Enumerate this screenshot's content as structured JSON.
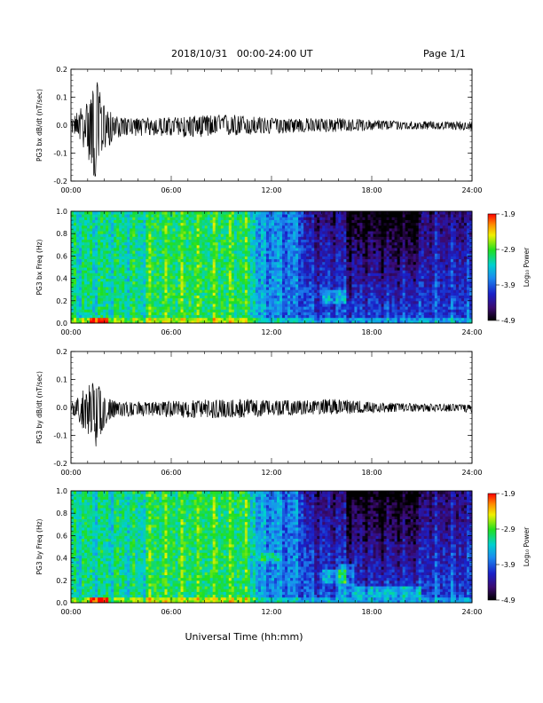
{
  "header": {
    "title": "2018/10/31   00:00-24:00 UT",
    "page": "Page 1/1"
  },
  "xlabel": "Universal Time (hh:mm)",
  "x_ticks": [
    "00:00",
    "06:00",
    "12:00",
    "18:00",
    "24:00"
  ],
  "colorbar": {
    "label": "Log₁₀ Power",
    "ticks": [
      "-1.9",
      "-2.9",
      "-3.9",
      "-4.9"
    ],
    "range": [
      -4.9,
      -1.9
    ]
  },
  "chart_data": [
    {
      "type": "line",
      "ylabel": "PG3 bx dB/dt (nT/sec)",
      "xlim": [
        0,
        24
      ],
      "ylim": [
        -0.2,
        0.2
      ],
      "y_ticks": [
        "0.2",
        "0.1",
        "0.0",
        "-0.1",
        "-0.2"
      ],
      "series": [
        {
          "x": [
            0,
            0.5,
            1.0,
            1.5,
            1.8,
            2.0,
            2.5,
            3,
            5,
            7,
            9,
            10,
            12,
            14,
            16,
            18,
            20,
            22,
            24
          ],
          "y_max": [
            0.01,
            0.05,
            0.07,
            0.13,
            0.09,
            0.06,
            0.03,
            0.02,
            0.02,
            0.025,
            0.03,
            0.03,
            0.02,
            0.02,
            0.02,
            0.015,
            0.012,
            0.01,
            0.01
          ],
          "y_min": [
            -0.02,
            -0.04,
            -0.09,
            -0.17,
            -0.1,
            -0.07,
            -0.05,
            -0.03,
            -0.03,
            -0.035,
            -0.03,
            -0.03,
            -0.025,
            -0.02,
            -0.02,
            -0.015,
            -0.012,
            -0.012,
            -0.015
          ]
        }
      ]
    },
    {
      "type": "heatmap",
      "ylabel": "PG3 bx Freq (Hz)",
      "xlim": [
        0,
        24
      ],
      "ylim": [
        0,
        1
      ],
      "y_ticks": [
        "1.0",
        "0.8",
        "0.6",
        "0.4",
        "0.2",
        "0.0"
      ],
      "colorbar_range": [
        -4.9,
        -1.9
      ],
      "features": [
        {
          "note": "",
          "x": [
            0,
            24
          ],
          "y": [
            0,
            1
          ],
          "value": -3.3
        }
      ]
    },
    {
      "type": "line",
      "ylabel": "PG3 by dB/dt (nT/sec)",
      "xlim": [
        0,
        24
      ],
      "ylim": [
        -0.2,
        0.2
      ],
      "y_ticks": [
        "0.2",
        "0.1",
        "0.0",
        "-0.1",
        "-0.2"
      ],
      "series": [
        {
          "x": [
            0,
            0.5,
            1.0,
            1.5,
            1.8,
            2.0,
            2.5,
            3,
            5,
            7,
            9,
            10,
            12,
            14,
            16,
            18,
            20,
            22,
            24
          ],
          "y_max": [
            0.01,
            0.04,
            0.06,
            0.08,
            0.05,
            0.04,
            0.02,
            0.015,
            0.015,
            0.02,
            0.025,
            0.025,
            0.02,
            0.02,
            0.025,
            0.015,
            0.012,
            0.01,
            0.01
          ],
          "y_min": [
            -0.02,
            -0.05,
            -0.08,
            -0.12,
            -0.08,
            -0.05,
            -0.03,
            -0.025,
            -0.025,
            -0.03,
            -0.03,
            -0.03,
            -0.025,
            -0.02,
            -0.02,
            -0.015,
            -0.012,
            -0.012,
            -0.015
          ]
        }
      ]
    },
    {
      "type": "heatmap",
      "ylabel": "PG3 by Freq (Hz)",
      "xlim": [
        0,
        24
      ],
      "ylim": [
        0,
        1
      ],
      "y_ticks": [
        "1.0",
        "0.8",
        "0.6",
        "0.4",
        "0.2",
        "0.0"
      ],
      "colorbar_range": [
        -4.9,
        -1.9
      ]
    }
  ]
}
